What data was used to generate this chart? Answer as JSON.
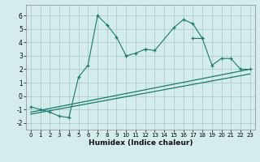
{
  "xlabel": "Humidex (Indice chaleur)",
  "bg_color": "#d4ecec",
  "grid_color": "#aecece",
  "line_color": "#1a7a6a",
  "xlim": [
    -0.5,
    23.5
  ],
  "ylim": [
    -2.5,
    6.8
  ],
  "yticks": [
    -2,
    -1,
    0,
    1,
    2,
    3,
    4,
    5,
    6
  ],
  "xticks": [
    0,
    1,
    2,
    3,
    4,
    5,
    6,
    7,
    8,
    9,
    10,
    11,
    12,
    13,
    14,
    15,
    16,
    17,
    18,
    19,
    20,
    21,
    22,
    23
  ],
  "series": [
    {
      "x": [
        0,
        1,
        2,
        3,
        4,
        5,
        6,
        7,
        8,
        9,
        10,
        11,
        12,
        13,
        15,
        16,
        17,
        18
      ],
      "y": [
        -0.8,
        -1.0,
        -1.2,
        -1.5,
        -1.6,
        1.4,
        2.3,
        6.0,
        5.3,
        4.4,
        3.0,
        3.2,
        3.5,
        3.4,
        5.1,
        5.7,
        5.4,
        4.3
      ],
      "marker": "+"
    },
    {
      "x": [
        17,
        18,
        19,
        20,
        21,
        22,
        23
      ],
      "y": [
        4.3,
        4.3,
        2.3,
        2.8,
        2.8,
        2.0,
        2.0
      ],
      "marker": "+"
    },
    {
      "x": [
        0,
        23
      ],
      "y": [
        -1.2,
        2.0
      ],
      "marker": null
    },
    {
      "x": [
        0,
        23
      ],
      "y": [
        -1.35,
        1.65
      ],
      "marker": null
    }
  ]
}
